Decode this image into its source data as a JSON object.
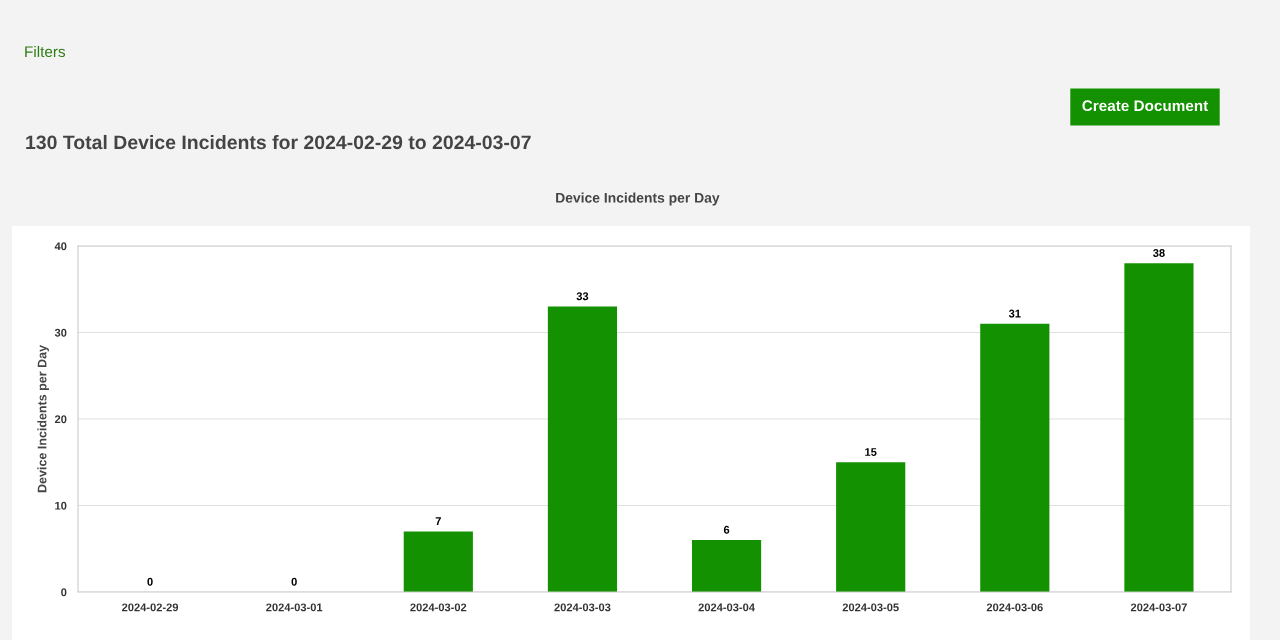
{
  "chart_data": {
    "type": "bar",
    "title": "130 Total Device Incidents for 2024-02-29 to 2024-03-07",
    "subtitle": "Device Incidents per Day",
    "ylabel": "Device Incidents per Day",
    "annotations": [
      "Filters",
      "Create Document"
    ],
    "categories": [
      "2024-02-29",
      "2024-03-01",
      "2024-03-02",
      "2024-03-03",
      "2024-03-04",
      "2024-03-05",
      "2024-03-06",
      "2024-03-07"
    ],
    "values": [
      0,
      0,
      7,
      33,
      6,
      15,
      31,
      38
    ],
    "color": "#149100",
    "ylim": [
      0,
      40
    ],
    "yticks": [
      0,
      10,
      20,
      30,
      40
    ],
    "grid": "y",
    "data_labels": true,
    "legend": false
  }
}
